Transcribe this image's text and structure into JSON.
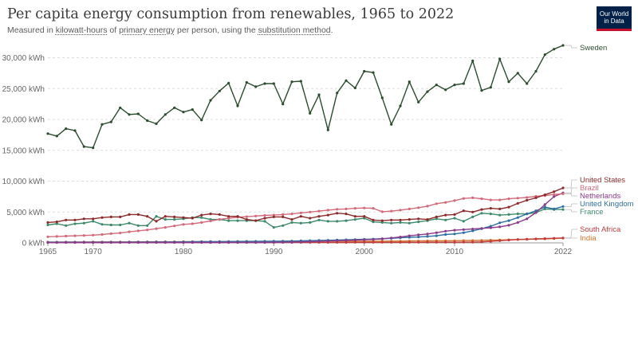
{
  "header": {
    "title": "Per capita energy consumption from renewables, 1965 to 2022",
    "subtitle_pre": "Measured in ",
    "subtitle_link1": "kilowatt-hours",
    "subtitle_mid1": " of ",
    "subtitle_link2": "primary energy",
    "subtitle_mid2": " per person, using the ",
    "subtitle_link3": "substitution method",
    "subtitle_post": "."
  },
  "logo": {
    "line1": "Our World",
    "line2": "in Data"
  },
  "chart_data": {
    "type": "line",
    "title": "Per capita energy consumption from renewables, 1965 to 2022",
    "ylim": [
      0,
      32000
    ],
    "xlim": [
      1965,
      2022
    ],
    "y_ticks": [
      0,
      5000,
      10000,
      15000,
      20000,
      25000,
      30000
    ],
    "y_tick_labels": [
      "0 kWh",
      "5,000 kWh",
      "10,000 kWh",
      "15,000 kWh",
      "20,000 kWh",
      "25,000 kWh",
      "30,000 kWh"
    ],
    "x_ticks": [
      1965,
      1970,
      1980,
      1990,
      2000,
      2010,
      2022
    ],
    "x_tick_labels": [
      "1965",
      "1970",
      "1980",
      "1990",
      "2000",
      "2010",
      "2022"
    ],
    "grid": "horizontal-dashed",
    "legend": "right",
    "x": [
      1965,
      1966,
      1967,
      1968,
      1969,
      1970,
      1971,
      1972,
      1973,
      1974,
      1975,
      1976,
      1977,
      1978,
      1979,
      1980,
      1981,
      1982,
      1983,
      1984,
      1985,
      1986,
      1987,
      1988,
      1989,
      1990,
      1991,
      1992,
      1993,
      1994,
      1995,
      1996,
      1997,
      1998,
      1999,
      2000,
      2001,
      2002,
      2003,
      2004,
      2005,
      2006,
      2007,
      2008,
      2009,
      2010,
      2011,
      2012,
      2013,
      2014,
      2015,
      2016,
      2017,
      2018,
      2019,
      2020,
      2021,
      2022
    ],
    "series": [
      {
        "name": "Sweden",
        "color": "#2b4d2e",
        "values": [
          17700,
          17300,
          18500,
          18200,
          15600,
          15400,
          19200,
          19600,
          21900,
          20800,
          20900,
          19800,
          19300,
          20800,
          21900,
          21200,
          21600,
          19900,
          23100,
          24600,
          25900,
          22200,
          26000,
          25300,
          25800,
          25800,
          22500,
          26100,
          26200,
          21000,
          24000,
          18300,
          24300,
          26300,
          25100,
          27800,
          27600,
          23500,
          19200,
          22200,
          26100,
          22800,
          24500,
          25600,
          24800,
          25600,
          25800,
          29500,
          24700,
          25200,
          29800,
          26100,
          27500,
          25800,
          27800,
          30500,
          31400,
          32000
        ]
      },
      {
        "name": "United States",
        "color": "#8c2a2a",
        "values": [
          3300,
          3400,
          3700,
          3700,
          3900,
          3900,
          4100,
          4200,
          4200,
          4600,
          4600,
          4300,
          3500,
          4300,
          4200,
          4100,
          4000,
          4500,
          4700,
          4600,
          4300,
          4300,
          3800,
          3600,
          4000,
          4200,
          4200,
          3800,
          4300,
          4000,
          4300,
          4500,
          4800,
          4700,
          4300,
          4300,
          3700,
          3600,
          3700,
          3700,
          3800,
          3900,
          3800,
          4200,
          4500,
          4600,
          5200,
          5000,
          5400,
          5600,
          5500,
          5800,
          6400,
          6900,
          7300,
          7800,
          8300,
          8900
        ]
      },
      {
        "name": "Brazil",
        "color": "#d36a7a",
        "values": [
          1000,
          1050,
          1100,
          1150,
          1200,
          1250,
          1350,
          1500,
          1600,
          1800,
          1950,
          2100,
          2300,
          2500,
          2750,
          3000,
          3100,
          3300,
          3550,
          3800,
          4000,
          4150,
          4250,
          4350,
          4450,
          4500,
          4600,
          4700,
          4850,
          5000,
          5150,
          5300,
          5450,
          5500,
          5600,
          5650,
          5600,
          5050,
          5150,
          5300,
          5500,
          5700,
          5950,
          6350,
          6550,
          6850,
          7200,
          7300,
          7150,
          6950,
          6950,
          7150,
          7250,
          7350,
          7550,
          7650,
          7850,
          7950
        ]
      },
      {
        "name": "Netherlands",
        "color": "#8a3a8a",
        "values": [
          60,
          60,
          60,
          60,
          60,
          60,
          60,
          60,
          60,
          60,
          60,
          60,
          60,
          60,
          60,
          60,
          60,
          60,
          60,
          60,
          60,
          60,
          60,
          60,
          60,
          80,
          100,
          120,
          150,
          200,
          250,
          300,
          350,
          400,
          450,
          500,
          550,
          650,
          800,
          950,
          1150,
          1300,
          1450,
          1650,
          1900,
          2050,
          2150,
          2250,
          2350,
          2450,
          2600,
          2850,
          3300,
          3900,
          4900,
          6200,
          7500,
          8100
        ]
      },
      {
        "name": "United Kingdom",
        "color": "#2d6fa3",
        "values": [
          120,
          120,
          120,
          120,
          120,
          120,
          120,
          120,
          120,
          130,
          130,
          130,
          140,
          150,
          160,
          170,
          180,
          190,
          200,
          210,
          220,
          230,
          240,
          250,
          260,
          270,
          280,
          300,
          330,
          360,
          400,
          430,
          470,
          500,
          540,
          580,
          620,
          680,
          740,
          820,
          900,
          950,
          1050,
          1150,
          1350,
          1450,
          1650,
          1950,
          2300,
          2700,
          3250,
          3600,
          4100,
          4700,
          5200,
          5800,
          5500,
          5900
        ]
      },
      {
        "name": "France",
        "color": "#3d8a6a",
        "values": [
          2900,
          3100,
          2800,
          3100,
          3200,
          3500,
          3000,
          2900,
          2900,
          3200,
          2800,
          2800,
          4300,
          3800,
          3800,
          3900,
          4100,
          4100,
          3800,
          3800,
          3600,
          3600,
          3600,
          3600,
          3500,
          2500,
          2800,
          3300,
          3200,
          3300,
          3700,
          3500,
          3500,
          3600,
          3800,
          4000,
          3400,
          3300,
          3200,
          3300,
          3200,
          3400,
          3600,
          3900,
          3700,
          4000,
          3500,
          4200,
          4800,
          4700,
          4500,
          4600,
          4700,
          4700,
          4900,
          5500,
          5400,
          5400
        ]
      },
      {
        "name": "South Africa",
        "color": "#c23b3b",
        "values": [
          70,
          70,
          70,
          70,
          70,
          70,
          70,
          70,
          70,
          70,
          70,
          70,
          70,
          70,
          70,
          70,
          70,
          70,
          70,
          70,
          70,
          80,
          80,
          80,
          80,
          80,
          80,
          80,
          80,
          80,
          80,
          80,
          80,
          80,
          90,
          90,
          90,
          90,
          90,
          90,
          90,
          90,
          100,
          100,
          100,
          100,
          110,
          120,
          150,
          250,
          350,
          450,
          550,
          600,
          650,
          700,
          750,
          800
        ]
      },
      {
        "name": "India",
        "color": "#d2722a",
        "values": [
          120,
          120,
          130,
          130,
          140,
          150,
          150,
          150,
          160,
          160,
          170,
          170,
          180,
          180,
          180,
          190,
          190,
          190,
          200,
          200,
          200,
          210,
          210,
          210,
          220,
          220,
          230,
          230,
          230,
          240,
          240,
          250,
          250,
          260,
          260,
          260,
          270,
          270,
          280,
          290,
          300,
          310,
          320,
          330,
          340,
          350,
          370,
          390,
          410,
          440,
          470,
          500,
          540,
          580,
          620,
          650,
          700,
          760
        ]
      }
    ]
  }
}
